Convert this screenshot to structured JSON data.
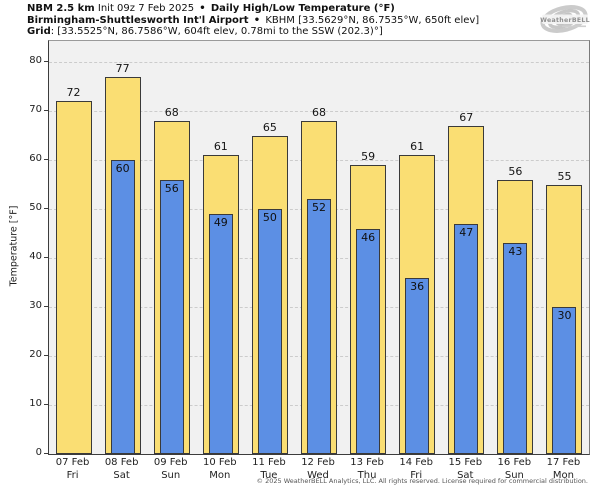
{
  "header": {
    "model": "NBM 2.5 km",
    "init": "Init 09z 7 Feb 2025",
    "sep": "•",
    "product": "Daily High/Low Temperature (°F)",
    "station_name": "Birmingham-Shuttlesworth Int'l Airport",
    "station_meta": "KBHM [33.5629°N, 86.7535°W, 650ft elev]",
    "grid_label": "Grid",
    "grid_meta": ": [33.5525°N, 86.7586°W, 604ft elev, 0.78mi to the SSW (202.3)°]"
  },
  "logo": {
    "text": "WeatherBELL"
  },
  "chart_data": {
    "type": "bar",
    "title": "Daily High/Low Temperature (°F)",
    "categories": [
      "07 Feb",
      "08 Feb",
      "09 Feb",
      "10 Feb",
      "11 Feb",
      "12 Feb",
      "13 Feb",
      "14 Feb",
      "15 Feb",
      "16 Feb",
      "17 Feb"
    ],
    "day_labels": [
      "Fri",
      "Sat",
      "Sun",
      "Mon",
      "Tue",
      "Wed",
      "Thu",
      "Fri",
      "Sat",
      "Sun",
      "Mon"
    ],
    "series": [
      {
        "name": "High",
        "color": "#FADE73",
        "values": [
          72,
          77,
          68,
          61,
          65,
          68,
          59,
          61,
          67,
          56,
          55
        ]
      },
      {
        "name": "Low",
        "color": "#5C8FE4",
        "values": [
          null,
          60,
          56,
          49,
          50,
          52,
          46,
          36,
          47,
          43,
          30
        ]
      }
    ],
    "xlabel": "",
    "ylabel": "Temperature [°F]",
    "ylim": [
      0,
      84.3
    ],
    "yticks": [
      0,
      10,
      20,
      30,
      40,
      50,
      60,
      70,
      80
    ],
    "grid": "horizontal-dashed",
    "legend": "none",
    "bar_edge_color": "#3a3a3a",
    "plot_background": "#F1F1F1"
  },
  "footer": {
    "copyright": "© 2025 WeatherBELL Analytics, LLC. All rights reserved. License required for commercial distribution."
  }
}
